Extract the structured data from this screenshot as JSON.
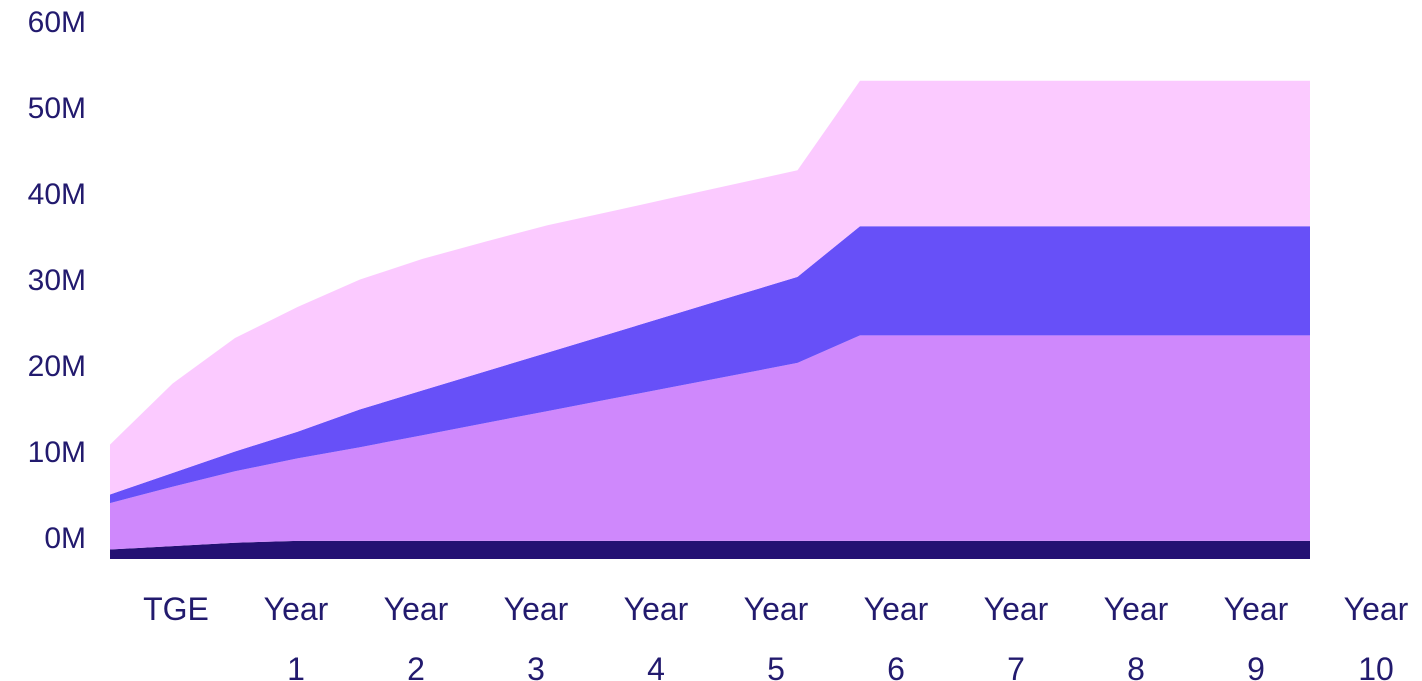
{
  "chart_data": {
    "type": "area",
    "stacked": true,
    "title": "",
    "xlabel": "",
    "ylabel": "",
    "ylim": [
      0,
      60
    ],
    "grid": false,
    "legend": "none",
    "y_ticks": [
      "0M",
      "10M",
      "20M",
      "30M",
      "40M",
      "50M",
      "60M"
    ],
    "y_tick_values": [
      0,
      10,
      20,
      30,
      40,
      50,
      60
    ],
    "x_categories": [
      {
        "line1": "TGE",
        "line2": ""
      },
      {
        "line1": "Year",
        "line2": "1"
      },
      {
        "line1": "Year",
        "line2": "2"
      },
      {
        "line1": "Year",
        "line2": "3"
      },
      {
        "line1": "Year",
        "line2": "4"
      },
      {
        "line1": "Year",
        "line2": "5"
      },
      {
        "line1": "Year",
        "line2": "6"
      },
      {
        "line1": "Year",
        "line2": "7"
      },
      {
        "line1": "Year",
        "line2": "8"
      },
      {
        "line1": "Year",
        "line2": "9"
      },
      {
        "line1": "Year",
        "line2": "10"
      }
    ],
    "x_positions": [
      0,
      0.5,
      1,
      1.5,
      2,
      2.5,
      3,
      3.5,
      4,
      4.5,
      5,
      5.5,
      6,
      6.5,
      7,
      7.5,
      8,
      8.5,
      9,
      9.5,
      10
    ],
    "x_range": [
      0,
      10
    ],
    "series": [
      {
        "color": "#241173",
        "values": [
          1.1,
          1.5,
          1.9,
          2.1,
          2.1,
          2.1,
          2.1,
          2.1,
          2.1,
          2.1,
          2.1,
          2.1,
          2.1,
          2.1,
          2.1,
          2.1,
          2.1,
          2.1,
          2.1,
          2.1,
          2.1
        ]
      },
      {
        "color": "#cf88fc",
        "values": [
          5.4,
          6.9,
          8.3,
          9.6,
          10.9,
          12.3,
          13.7,
          15.1,
          16.5,
          17.9,
          19.3,
          20.7,
          23.9,
          23.9,
          23.9,
          23.9,
          23.9,
          23.9,
          23.9,
          23.9,
          23.9
        ]
      },
      {
        "color": "#6750f8",
        "values": [
          1.0,
          1.6,
          2.3,
          3.1,
          4.4,
          5.2,
          6.0,
          6.8,
          7.6,
          8.4,
          9.2,
          10.0,
          12.7,
          12.7,
          12.7,
          12.7,
          12.7,
          12.7,
          12.7,
          12.7,
          12.7
        ]
      },
      {
        "color": "#fbcaff",
        "values": [
          5.8,
          10.4,
          13.2,
          14.5,
          15.1,
          15.3,
          15.1,
          14.8,
          14.2,
          13.6,
          13.0,
          12.4,
          16.9,
          16.9,
          16.9,
          16.9,
          16.9,
          16.9,
          16.9,
          16.9,
          16.9
        ]
      }
    ],
    "series_x_end": 9.6
  },
  "colors": {
    "axis_text": "#221a6e",
    "background": "#ffffff"
  }
}
